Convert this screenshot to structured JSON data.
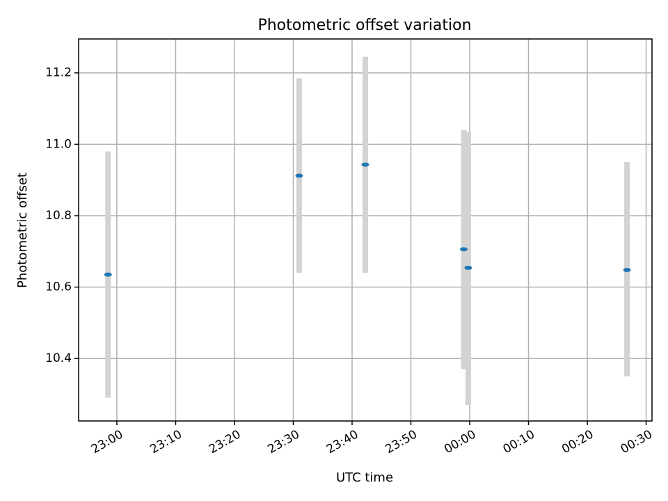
{
  "chart_data": {
    "type": "scatter",
    "title": "Photometric offset variation",
    "xlabel": "UTC time",
    "ylabel": "Photometric offset",
    "x_ticks": [
      "23:00",
      "23:10",
      "23:20",
      "23:30",
      "23:40",
      "23:50",
      "00:00",
      "00:10",
      "00:20",
      "00:30"
    ],
    "y_ticks": [
      "10.4",
      "10.6",
      "10.8",
      "11.0",
      "11.2"
    ],
    "xlim": [
      "22:53:30",
      "00:31:00"
    ],
    "ylim": [
      10.225,
      11.295
    ],
    "grid": true,
    "series": [
      {
        "points": [
          {
            "x": "22:58:30",
            "y": 10.635,
            "yerr_low": 10.29,
            "yerr_high": 10.98
          },
          {
            "x": "23:31:00",
            "y": 10.912,
            "yerr_low": 10.64,
            "yerr_high": 11.185
          },
          {
            "x": "23:42:15",
            "y": 10.943,
            "yerr_low": 10.64,
            "yerr_high": 11.245
          },
          {
            "x": "23:59:00",
            "y": 10.706,
            "yerr_low": 10.37,
            "yerr_high": 11.04
          },
          {
            "x": "23:59:45",
            "y": 10.654,
            "yerr_low": 10.27,
            "yerr_high": 11.035
          },
          {
            "x": "00:26:45",
            "y": 10.648,
            "yerr_low": 10.35,
            "yerr_high": 10.95
          }
        ],
        "marker_color": "#1f77b4",
        "errorbar_color": "#d3d3d3"
      }
    ]
  }
}
